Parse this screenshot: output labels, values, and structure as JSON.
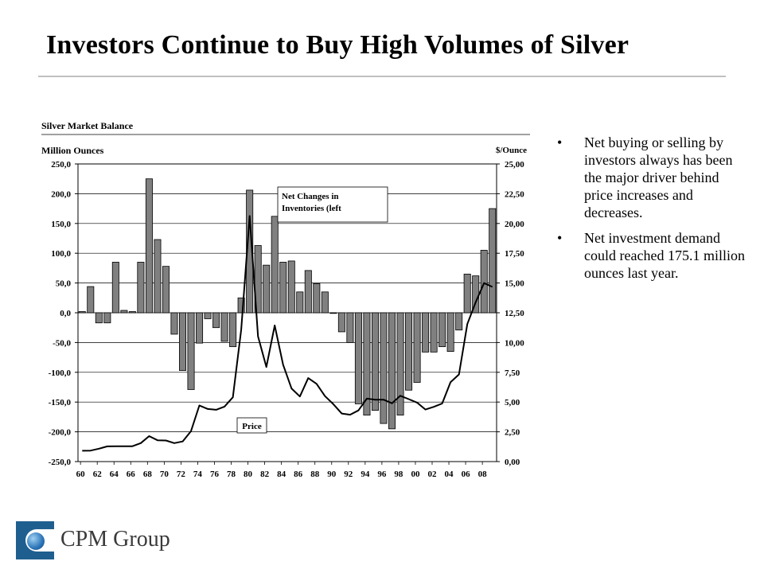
{
  "title": "Investors Continue to Buy High Volumes of Silver",
  "bullets": [
    "Net buying or selling by investors always has been the major driver behind price increases and decreases.",
    "Net investment demand could reached 175.1 million ounces last year."
  ],
  "bullet_glyph": "•",
  "logo": {
    "name": "CPM Group",
    "icon": "cpm-globe-logo-icon"
  },
  "colors": {
    "bar": "#808080",
    "line": "#000000"
  },
  "chart_data": {
    "type": "bar",
    "title": "Silver Market Balance",
    "ylabel_left": "Million Ounces",
    "ylabel_right": "$/Ounce",
    "ylim_left": [
      -250,
      250
    ],
    "ylim_right": [
      0,
      25
    ],
    "yticks_left": [
      "250,0",
      "200,0",
      "150,0",
      "100,0",
      "50,0",
      "0,0",
      "-50,0",
      "-100,0",
      "-150,0",
      "-200,0",
      "-250,0"
    ],
    "yticks_right": [
      "25,00",
      "22,50",
      "20,00",
      "17,50",
      "15,00",
      "12,50",
      "10,00",
      "7,50",
      "5,00",
      "2,50",
      "0,00"
    ],
    "x_tick_labels": [
      "60",
      "62",
      "64",
      "66",
      "68",
      "70",
      "72",
      "74",
      "76",
      "78",
      "80",
      "82",
      "84",
      "86",
      "88",
      "90",
      "92",
      "94",
      "96",
      "98",
      "00",
      "02",
      "04",
      "06",
      "08"
    ],
    "x": [
      1960,
      1961,
      1962,
      1963,
      1964,
      1965,
      1966,
      1967,
      1968,
      1969,
      1970,
      1971,
      1972,
      1973,
      1974,
      1975,
      1976,
      1977,
      1978,
      1979,
      1980,
      1981,
      1982,
      1983,
      1984,
      1985,
      1986,
      1987,
      1988,
      1989,
      1990,
      1991,
      1992,
      1993,
      1994,
      1995,
      1996,
      1997,
      1998,
      1999,
      2000,
      2001,
      2002,
      2003,
      2004,
      2005,
      2006,
      2007,
      2008,
      2009
    ],
    "series": [
      {
        "name": "Net Changes in Inventories (left",
        "type": "bar",
        "values": [
          2,
          44,
          -17,
          -17,
          85,
          4,
          2,
          85,
          225,
          123,
          78,
          -36,
          -97,
          -129,
          -51,
          -10,
          -25,
          -48,
          -57,
          25,
          206,
          113,
          80,
          162,
          85,
          87,
          35,
          71,
          49,
          35,
          0,
          -32,
          -50,
          -153,
          -172,
          -164,
          -186,
          -195,
          -172,
          -130,
          -117,
          -66,
          -66,
          -57,
          -65,
          -29,
          65,
          62,
          105,
          175
        ]
      },
      {
        "name": "Price",
        "type": "line",
        "values": [
          0.91,
          0.92,
          1.08,
          1.28,
          1.29,
          1.29,
          1.29,
          1.55,
          2.14,
          1.79,
          1.77,
          1.55,
          1.69,
          2.56,
          4.71,
          4.42,
          4.35,
          4.62,
          5.4,
          11.09,
          20.63,
          10.52,
          7.95,
          11.44,
          8.14,
          6.14,
          5.47,
          7.01,
          6.53,
          5.5,
          4.82,
          4.04,
          3.94,
          4.3,
          5.29,
          5.2,
          5.2,
          4.9,
          5.53,
          5.25,
          4.95,
          4.37,
          4.6,
          4.88,
          6.67,
          7.32,
          11.55,
          13.38,
          14.99,
          14.67
        ]
      }
    ],
    "annotations": [
      {
        "text_lines": [
          "Net Changes in",
          "Inventories  (left"
        ],
        "target": "bars"
      },
      {
        "text_lines": [
          "Price"
        ],
        "target": "line"
      }
    ],
    "grid": true,
    "legend": "none"
  }
}
